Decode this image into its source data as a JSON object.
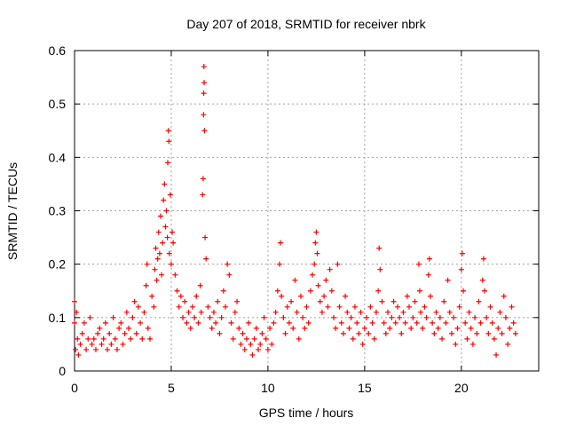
{
  "chart_data": {
    "type": "scatter",
    "title": "Day 207 of 2018, SRMTID for receiver nbrk",
    "xlabel": "GPS time / hours",
    "ylabel": "SRMTID / TECUs",
    "xlim": [
      0,
      24
    ],
    "ylim": [
      0,
      0.6
    ],
    "x_ticks": [
      0,
      5,
      10,
      15,
      20
    ],
    "x_tick_labels": [
      "0",
      "5",
      "10",
      "15",
      "20"
    ],
    "y_ticks": [
      0,
      0.1,
      0.2,
      0.3,
      0.4,
      0.5,
      0.6
    ],
    "y_tick_labels": [
      "0",
      "0.1",
      "0.2",
      "0.3",
      "0.4",
      "0.5",
      "0.6"
    ],
    "grid": true,
    "marker": "+",
    "series": [
      {
        "name": "SRMTID",
        "color": "#ff0000",
        "points": [
          [
            0.0,
            0.13
          ],
          [
            0.0,
            0.09
          ],
          [
            0.05,
            0.04
          ],
          [
            0.1,
            0.11
          ],
          [
            0.15,
            0.06
          ],
          [
            0.2,
            0.03
          ],
          [
            0.3,
            0.05
          ],
          [
            0.4,
            0.07
          ],
          [
            0.5,
            0.09
          ],
          [
            0.6,
            0.04
          ],
          [
            0.7,
            0.06
          ],
          [
            0.8,
            0.1
          ],
          [
            0.9,
            0.05
          ],
          [
            1.0,
            0.06
          ],
          [
            1.1,
            0.04
          ],
          [
            1.2,
            0.07
          ],
          [
            1.3,
            0.08
          ],
          [
            1.4,
            0.05
          ],
          [
            1.5,
            0.06
          ],
          [
            1.6,
            0.09
          ],
          [
            1.7,
            0.04
          ],
          [
            1.8,
            0.07
          ],
          [
            1.9,
            0.05
          ],
          [
            2.0,
            0.1
          ],
          [
            2.1,
            0.06
          ],
          [
            2.2,
            0.04
          ],
          [
            2.3,
            0.08
          ],
          [
            2.4,
            0.09
          ],
          [
            2.5,
            0.05
          ],
          [
            2.6,
            0.07
          ],
          [
            2.7,
            0.11
          ],
          [
            2.8,
            0.08
          ],
          [
            2.9,
            0.06
          ],
          [
            3.0,
            0.1
          ],
          [
            3.1,
            0.13
          ],
          [
            3.2,
            0.07
          ],
          [
            3.3,
            0.12
          ],
          [
            3.4,
            0.09
          ],
          [
            3.5,
            0.06
          ],
          [
            3.6,
            0.11
          ],
          [
            3.7,
            0.16
          ],
          [
            3.75,
            0.2
          ],
          [
            3.8,
            0.08
          ],
          [
            3.9,
            0.06
          ],
          [
            4.0,
            0.14
          ],
          [
            4.1,
            0.12
          ],
          [
            4.15,
            0.19
          ],
          [
            4.2,
            0.23
          ],
          [
            4.25,
            0.17
          ],
          [
            4.3,
            0.21
          ],
          [
            4.35,
            0.26
          ],
          [
            4.4,
            0.22
          ],
          [
            4.45,
            0.29
          ],
          [
            4.5,
            0.18
          ],
          [
            4.55,
            0.24
          ],
          [
            4.6,
            0.32
          ],
          [
            4.65,
            0.35
          ],
          [
            4.7,
            0.27
          ],
          [
            4.75,
            0.3
          ],
          [
            4.8,
            0.25
          ],
          [
            4.82,
            0.39
          ],
          [
            4.85,
            0.45
          ],
          [
            4.88,
            0.43
          ],
          [
            4.9,
            0.22
          ],
          [
            4.95,
            0.33
          ],
          [
            5.0,
            0.2
          ],
          [
            5.05,
            0.26
          ],
          [
            5.1,
            0.24
          ],
          [
            5.2,
            0.18
          ],
          [
            5.3,
            0.15
          ],
          [
            5.4,
            0.12
          ],
          [
            5.5,
            0.14
          ],
          [
            5.6,
            0.1
          ],
          [
            5.7,
            0.13
          ],
          [
            5.8,
            0.09
          ],
          [
            5.9,
            0.11
          ],
          [
            6.0,
            0.08
          ],
          [
            6.1,
            0.12
          ],
          [
            6.2,
            0.1
          ],
          [
            6.3,
            0.14
          ],
          [
            6.4,
            0.09
          ],
          [
            6.5,
            0.16
          ],
          [
            6.55,
            0.11
          ],
          [
            6.62,
            0.33
          ],
          [
            6.65,
            0.36
          ],
          [
            6.67,
            0.48
          ],
          [
            6.68,
            0.52
          ],
          [
            6.69,
            0.57
          ],
          [
            6.7,
            0.54
          ],
          [
            6.72,
            0.45
          ],
          [
            6.75,
            0.25
          ],
          [
            6.8,
            0.21
          ],
          [
            6.9,
            0.12
          ],
          [
            7.0,
            0.1
          ],
          [
            7.1,
            0.08
          ],
          [
            7.2,
            0.11
          ],
          [
            7.3,
            0.09
          ],
          [
            7.4,
            0.13
          ],
          [
            7.5,
            0.07
          ],
          [
            7.6,
            0.1
          ],
          [
            7.7,
            0.15
          ],
          [
            7.8,
            0.12
          ],
          [
            7.9,
            0.2
          ],
          [
            8.0,
            0.18
          ],
          [
            8.1,
            0.09
          ],
          [
            8.2,
            0.06
          ],
          [
            8.3,
            0.11
          ],
          [
            8.4,
            0.13
          ],
          [
            8.5,
            0.08
          ],
          [
            8.6,
            0.05
          ],
          [
            8.7,
            0.07
          ],
          [
            8.8,
            0.04
          ],
          [
            8.9,
            0.06
          ],
          [
            9.0,
            0.09
          ],
          [
            9.1,
            0.05
          ],
          [
            9.2,
            0.03
          ],
          [
            9.3,
            0.06
          ],
          [
            9.4,
            0.08
          ],
          [
            9.5,
            0.04
          ],
          [
            9.6,
            0.05
          ],
          [
            9.7,
            0.07
          ],
          [
            9.8,
            0.1
          ],
          [
            9.9,
            0.06
          ],
          [
            10.0,
            0.04
          ],
          [
            10.1,
            0.08
          ],
          [
            10.2,
            0.05
          ],
          [
            10.3,
            0.09
          ],
          [
            10.4,
            0.11
          ],
          [
            10.5,
            0.15
          ],
          [
            10.6,
            0.2
          ],
          [
            10.65,
            0.24
          ],
          [
            10.7,
            0.14
          ],
          [
            10.8,
            0.1
          ],
          [
            10.9,
            0.07
          ],
          [
            11.0,
            0.12
          ],
          [
            11.1,
            0.09
          ],
          [
            11.2,
            0.13
          ],
          [
            11.3,
            0.08
          ],
          [
            11.4,
            0.17
          ],
          [
            11.5,
            0.11
          ],
          [
            11.6,
            0.06
          ],
          [
            11.7,
            0.14
          ],
          [
            11.8,
            0.1
          ],
          [
            11.9,
            0.08
          ],
          [
            12.0,
            0.12
          ],
          [
            12.1,
            0.09
          ],
          [
            12.2,
            0.15
          ],
          [
            12.3,
            0.18
          ],
          [
            12.4,
            0.2
          ],
          [
            12.45,
            0.24
          ],
          [
            12.5,
            0.26
          ],
          [
            12.55,
            0.22
          ],
          [
            12.6,
            0.16
          ],
          [
            12.7,
            0.13
          ],
          [
            12.8,
            0.11
          ],
          [
            12.9,
            0.14
          ],
          [
            13.0,
            0.17
          ],
          [
            13.1,
            0.12
          ],
          [
            13.2,
            0.19
          ],
          [
            13.3,
            0.15
          ],
          [
            13.4,
            0.1
          ],
          [
            13.5,
            0.08
          ],
          [
            13.6,
            0.2
          ],
          [
            13.7,
            0.12
          ],
          [
            13.8,
            0.09
          ],
          [
            13.9,
            0.07
          ],
          [
            14.0,
            0.14
          ],
          [
            14.1,
            0.11
          ],
          [
            14.2,
            0.08
          ],
          [
            14.3,
            0.1
          ],
          [
            14.4,
            0.06
          ],
          [
            14.5,
            0.12
          ],
          [
            14.6,
            0.09
          ],
          [
            14.7,
            0.07
          ],
          [
            14.8,
            0.11
          ],
          [
            14.9,
            0.05
          ],
          [
            15.0,
            0.08
          ],
          [
            15.1,
            0.1
          ],
          [
            15.2,
            0.07
          ],
          [
            15.3,
            0.12
          ],
          [
            15.4,
            0.09
          ],
          [
            15.5,
            0.06
          ],
          [
            15.6,
            0.11
          ],
          [
            15.7,
            0.15
          ],
          [
            15.75,
            0.23
          ],
          [
            15.8,
            0.19
          ],
          [
            15.9,
            0.13
          ],
          [
            16.0,
            0.09
          ],
          [
            16.1,
            0.07
          ],
          [
            16.2,
            0.11
          ],
          [
            16.3,
            0.08
          ],
          [
            16.4,
            0.1
          ],
          [
            16.5,
            0.13
          ],
          [
            16.6,
            0.09
          ],
          [
            16.7,
            0.12
          ],
          [
            16.8,
            0.1
          ],
          [
            16.9,
            0.07
          ],
          [
            17.0,
            0.11
          ],
          [
            17.1,
            0.09
          ],
          [
            17.2,
            0.14
          ],
          [
            17.3,
            0.12
          ],
          [
            17.4,
            0.08
          ],
          [
            17.5,
            0.1
          ],
          [
            17.6,
            0.13
          ],
          [
            17.7,
            0.09
          ],
          [
            17.8,
            0.2
          ],
          [
            17.85,
            0.15
          ],
          [
            17.9,
            0.11
          ],
          [
            18.0,
            0.08
          ],
          [
            18.1,
            0.12
          ],
          [
            18.2,
            0.1
          ],
          [
            18.3,
            0.18
          ],
          [
            18.35,
            0.21
          ],
          [
            18.4,
            0.14
          ],
          [
            18.5,
            0.09
          ],
          [
            18.6,
            0.07
          ],
          [
            18.7,
            0.11
          ],
          [
            18.8,
            0.08
          ],
          [
            18.9,
            0.1
          ],
          [
            19.0,
            0.06
          ],
          [
            19.1,
            0.13
          ],
          [
            19.2,
            0.09
          ],
          [
            19.3,
            0.17
          ],
          [
            19.4,
            0.11
          ],
          [
            19.5,
            0.07
          ],
          [
            19.6,
            0.1
          ],
          [
            19.7,
            0.05
          ],
          [
            19.8,
            0.08
          ],
          [
            19.9,
            0.12
          ],
          [
            20.0,
            0.19
          ],
          [
            20.05,
            0.22
          ],
          [
            20.1,
            0.15
          ],
          [
            20.2,
            0.09
          ],
          [
            20.3,
            0.06
          ],
          [
            20.4,
            0.11
          ],
          [
            20.5,
            0.08
          ],
          [
            20.6,
            0.05
          ],
          [
            20.7,
            0.1
          ],
          [
            20.8,
            0.07
          ],
          [
            20.9,
            0.13
          ],
          [
            21.0,
            0.09
          ],
          [
            21.1,
            0.17
          ],
          [
            21.15,
            0.21
          ],
          [
            21.2,
            0.15
          ],
          [
            21.3,
            0.1
          ],
          [
            21.4,
            0.07
          ],
          [
            21.5,
            0.12
          ],
          [
            21.6,
            0.09
          ],
          [
            21.7,
            0.06
          ],
          [
            21.8,
            0.03
          ],
          [
            21.9,
            0.08
          ],
          [
            22.0,
            0.11
          ],
          [
            22.1,
            0.07
          ],
          [
            22.2,
            0.14
          ],
          [
            22.3,
            0.1
          ],
          [
            22.4,
            0.05
          ],
          [
            22.5,
            0.08
          ],
          [
            22.6,
            0.12
          ],
          [
            22.7,
            0.09
          ],
          [
            22.8,
            0.07
          ]
        ]
      }
    ]
  }
}
